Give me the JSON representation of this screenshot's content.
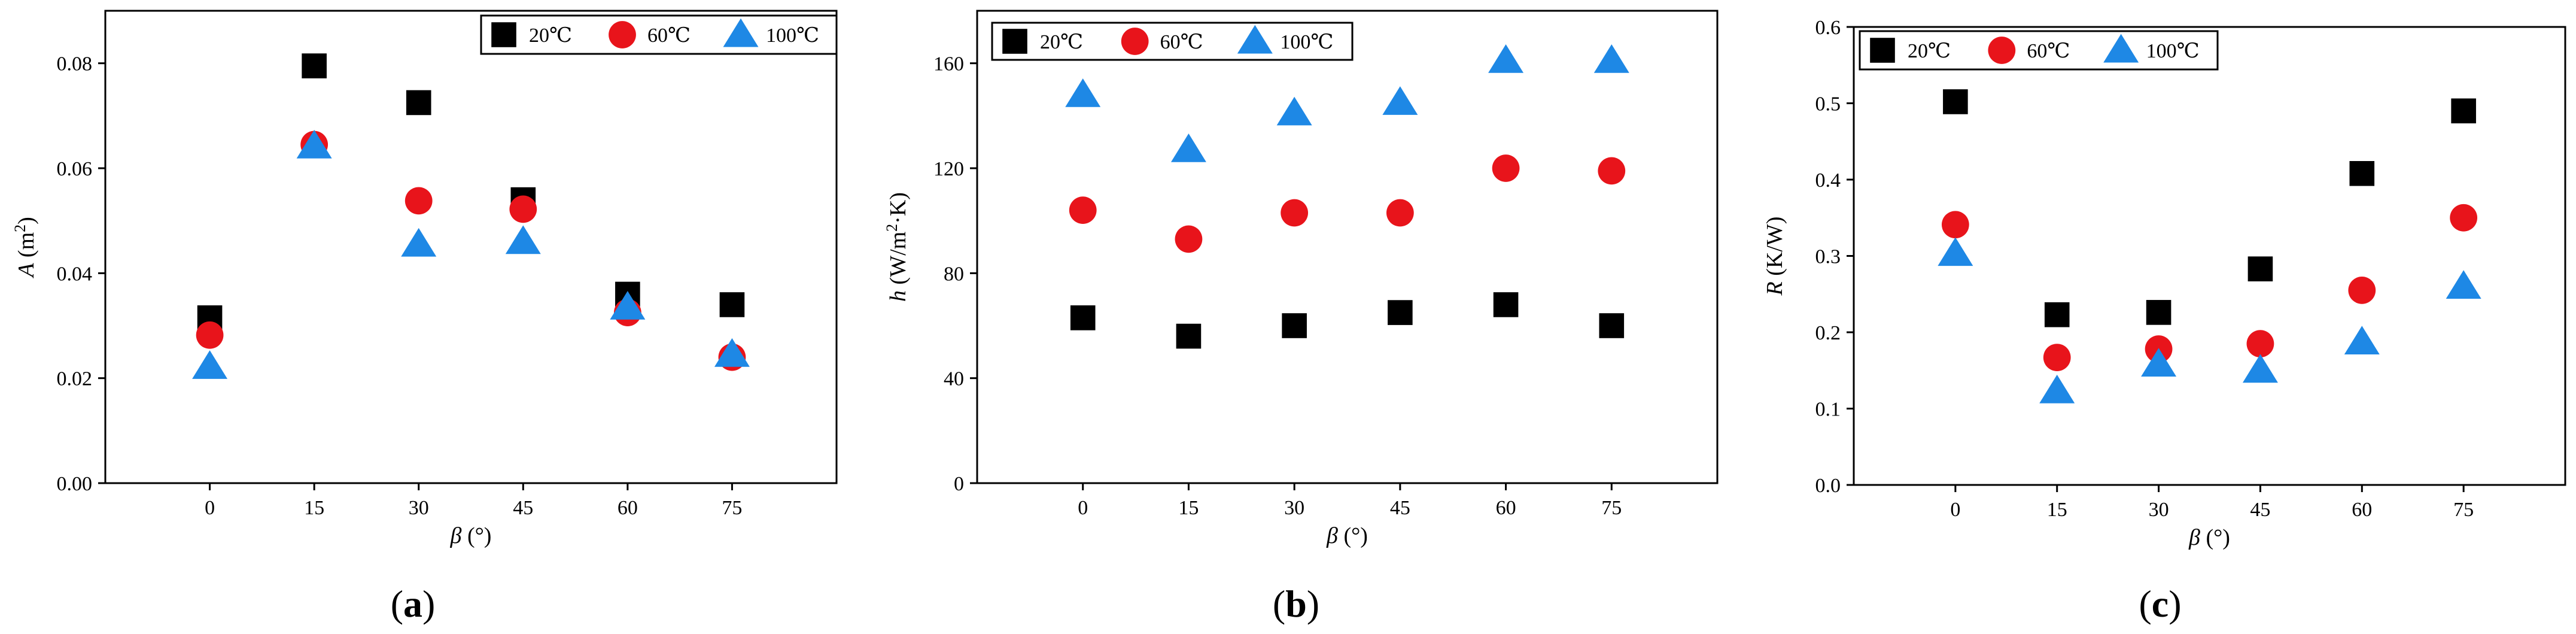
{
  "colors": {
    "series_20": "#000000",
    "series_60": "#e8141b",
    "series_100": "#1e88e5",
    "axis": "#000000",
    "background": "#ffffff"
  },
  "legend": {
    "entries": [
      {
        "label": "20℃",
        "marker": "square",
        "color": "#000000"
      },
      {
        "label": "60℃",
        "marker": "circle",
        "color": "#e8141b"
      },
      {
        "label": "100℃",
        "marker": "triangle",
        "color": "#1e88e5"
      }
    ]
  },
  "chart_data": [
    {
      "type": "scatter",
      "panel_label": {
        "open": "(",
        "letter": "a",
        "close": ")"
      },
      "ylabel": {
        "symbol": "A",
        "unit": " (m",
        "sup": "2",
        "end": ")"
      },
      "xlabel": {
        "symbol": "β",
        "unit": " (°)"
      },
      "x": [
        0,
        15,
        30,
        45,
        60,
        75
      ],
      "x_ticks": [
        "0",
        "15",
        "30",
        "45",
        "60",
        "75"
      ],
      "xlim": [
        -15,
        90
      ],
      "ylim": [
        0.0,
        0.09
      ],
      "y_ticks": [
        0.0,
        0.02,
        0.04,
        0.06,
        0.08
      ],
      "y_tick_labels": [
        "0.00",
        "0.02",
        "0.04",
        "0.06",
        "0.08"
      ],
      "legend_position": "top-right",
      "series": [
        {
          "name": "20℃",
          "marker": "square",
          "values": [
            0.0315,
            0.0795,
            0.0725,
            0.054,
            0.036,
            0.034
          ]
        },
        {
          "name": "60℃",
          "marker": "circle",
          "values": [
            0.0282,
            0.0645,
            0.0538,
            0.0522,
            0.0325,
            0.024
          ]
        },
        {
          "name": "100℃",
          "marker": "triangle",
          "values": [
            0.0222,
            0.0642,
            0.0455,
            0.046,
            0.0335,
            0.0245
          ]
        }
      ]
    },
    {
      "type": "scatter",
      "panel_label": {
        "open": "(",
        "letter": "b",
        "close": ")"
      },
      "ylabel": {
        "symbol": "h",
        "unit": " (W/m",
        "sup": "2",
        "end": "·K)"
      },
      "xlabel": {
        "symbol": "β",
        "unit": " (°)"
      },
      "x": [
        0,
        15,
        30,
        45,
        60,
        75
      ],
      "x_ticks": [
        "0",
        "15",
        "30",
        "45",
        "60",
        "75"
      ],
      "xlim": [
        -15,
        90
      ],
      "ylim": [
        0,
        180
      ],
      "y_ticks": [
        0,
        40,
        80,
        120,
        160
      ],
      "y_tick_labels": [
        "0",
        "40",
        "80",
        "120",
        "160"
      ],
      "legend_position": "top-left",
      "series": [
        {
          "name": "20℃",
          "marker": "square",
          "values": [
            63,
            56,
            60,
            65,
            68,
            60
          ]
        },
        {
          "name": "60℃",
          "marker": "circle",
          "values": [
            104,
            93,
            103,
            103,
            120,
            119
          ]
        },
        {
          "name": "100℃",
          "marker": "triangle",
          "values": [
            148,
            127,
            141,
            145,
            161,
            161
          ]
        }
      ]
    },
    {
      "type": "scatter",
      "panel_label": {
        "open": "(",
        "letter": "c",
        "close": ")"
      },
      "ylabel": {
        "symbol": "R",
        "unit": " (K/W)",
        "sup": "",
        "end": ""
      },
      "xlabel": {
        "symbol": "β",
        "unit": " (°)"
      },
      "x": [
        0,
        15,
        30,
        45,
        60,
        75
      ],
      "x_ticks": [
        "0",
        "15",
        "30",
        "45",
        "60",
        "75"
      ],
      "xlim": [
        -15,
        90
      ],
      "ylim": [
        0.0,
        0.6
      ],
      "y_ticks": [
        0.0,
        0.1,
        0.2,
        0.3,
        0.4,
        0.5,
        0.6
      ],
      "y_tick_labels": [
        "0.0",
        "0.1",
        "0.2",
        "0.3",
        "0.4",
        "0.5",
        "0.6"
      ],
      "legend_position": "top-left",
      "series": [
        {
          "name": "20℃",
          "marker": "square",
          "values": [
            0.502,
            0.223,
            0.226,
            0.283,
            0.408,
            0.49
          ]
        },
        {
          "name": "60℃",
          "marker": "circle",
          "values": [
            0.341,
            0.167,
            0.178,
            0.185,
            0.255,
            0.35
          ]
        },
        {
          "name": "100℃",
          "marker": "triangle",
          "values": [
            0.303,
            0.123,
            0.158,
            0.15,
            0.187,
            0.26
          ]
        }
      ]
    }
  ]
}
